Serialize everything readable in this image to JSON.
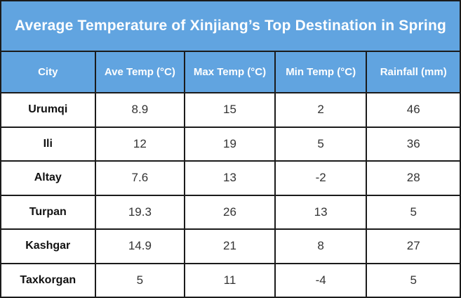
{
  "chart_data": {
    "type": "table",
    "title": "Average Temperature of Xinjiang’s Top Destination in Spring",
    "columns": [
      "City",
      "Ave Temp (°C)",
      "Max Temp (°C)",
      "Min Temp (°C)",
      "Rainfall (mm)"
    ],
    "rows": [
      [
        "Urumqi",
        8.9,
        15,
        2,
        46
      ],
      [
        "Ili",
        12,
        19,
        5,
        36
      ],
      [
        "Altay",
        7.6,
        13,
        -2,
        28
      ],
      [
        "Turpan",
        19.3,
        26,
        13,
        5
      ],
      [
        "Kashgar",
        14.9,
        21,
        8,
        27
      ],
      [
        "Taxkorgan",
        5,
        11,
        -4,
        5
      ]
    ],
    "layout": {
      "header_background": "#61a4e0",
      "header_text_color": "#ffffff",
      "row_background": "#ffffff",
      "border_color": "#1b1b1b"
    }
  }
}
